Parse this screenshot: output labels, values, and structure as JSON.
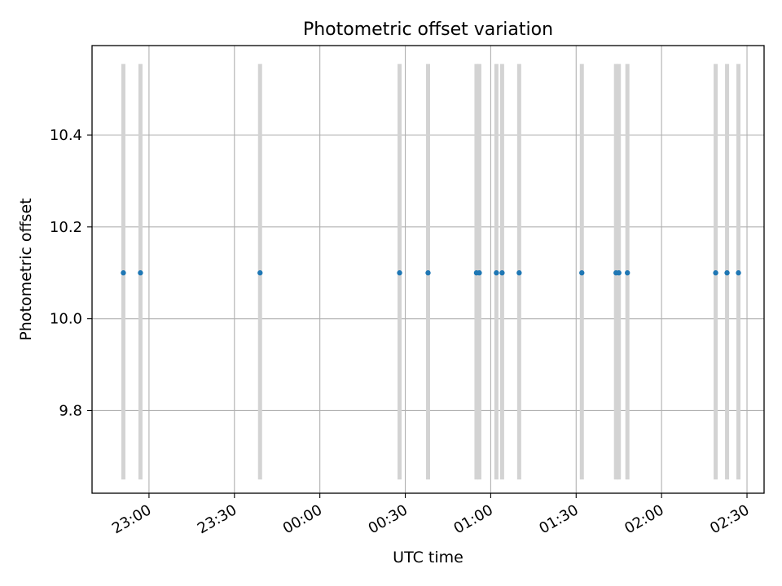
{
  "chart_data": {
    "type": "scatter",
    "title": "Photometric offset variation",
    "xlabel": "UTC time",
    "ylabel": "Photometric offset",
    "x_reference_date": "",
    "xlim": [
      "22:40",
      "02:36"
    ],
    "ylim": [
      9.62,
      10.595
    ],
    "x_ticks": [
      "23:00",
      "23:30",
      "00:00",
      "00:30",
      "01:00",
      "01:30",
      "02:00",
      "02:30"
    ],
    "y_ticks": [
      "9.8",
      "10.0",
      "10.2",
      "10.4"
    ],
    "grid": true,
    "error_bar_range": [
      9.65,
      10.555
    ],
    "error_bar_color": "#d3d3d3",
    "point_color": "#1f77b4",
    "points": [
      {
        "x": "22:51",
        "y": 10.1
      },
      {
        "x": "22:57",
        "y": 10.1
      },
      {
        "x": "23:39",
        "y": 10.1
      },
      {
        "x": "00:28",
        "y": 10.1
      },
      {
        "x": "00:38",
        "y": 10.1
      },
      {
        "x": "00:55",
        "y": 10.1
      },
      {
        "x": "00:56",
        "y": 10.1
      },
      {
        "x": "01:02",
        "y": 10.1
      },
      {
        "x": "01:04",
        "y": 10.1
      },
      {
        "x": "01:10",
        "y": 10.1
      },
      {
        "x": "01:32",
        "y": 10.1
      },
      {
        "x": "01:44",
        "y": 10.1
      },
      {
        "x": "01:45",
        "y": 10.1
      },
      {
        "x": "01:48",
        "y": 10.1
      },
      {
        "x": "02:19",
        "y": 10.1
      },
      {
        "x": "02:23",
        "y": 10.1
      },
      {
        "x": "02:27",
        "y": 10.1
      }
    ]
  }
}
